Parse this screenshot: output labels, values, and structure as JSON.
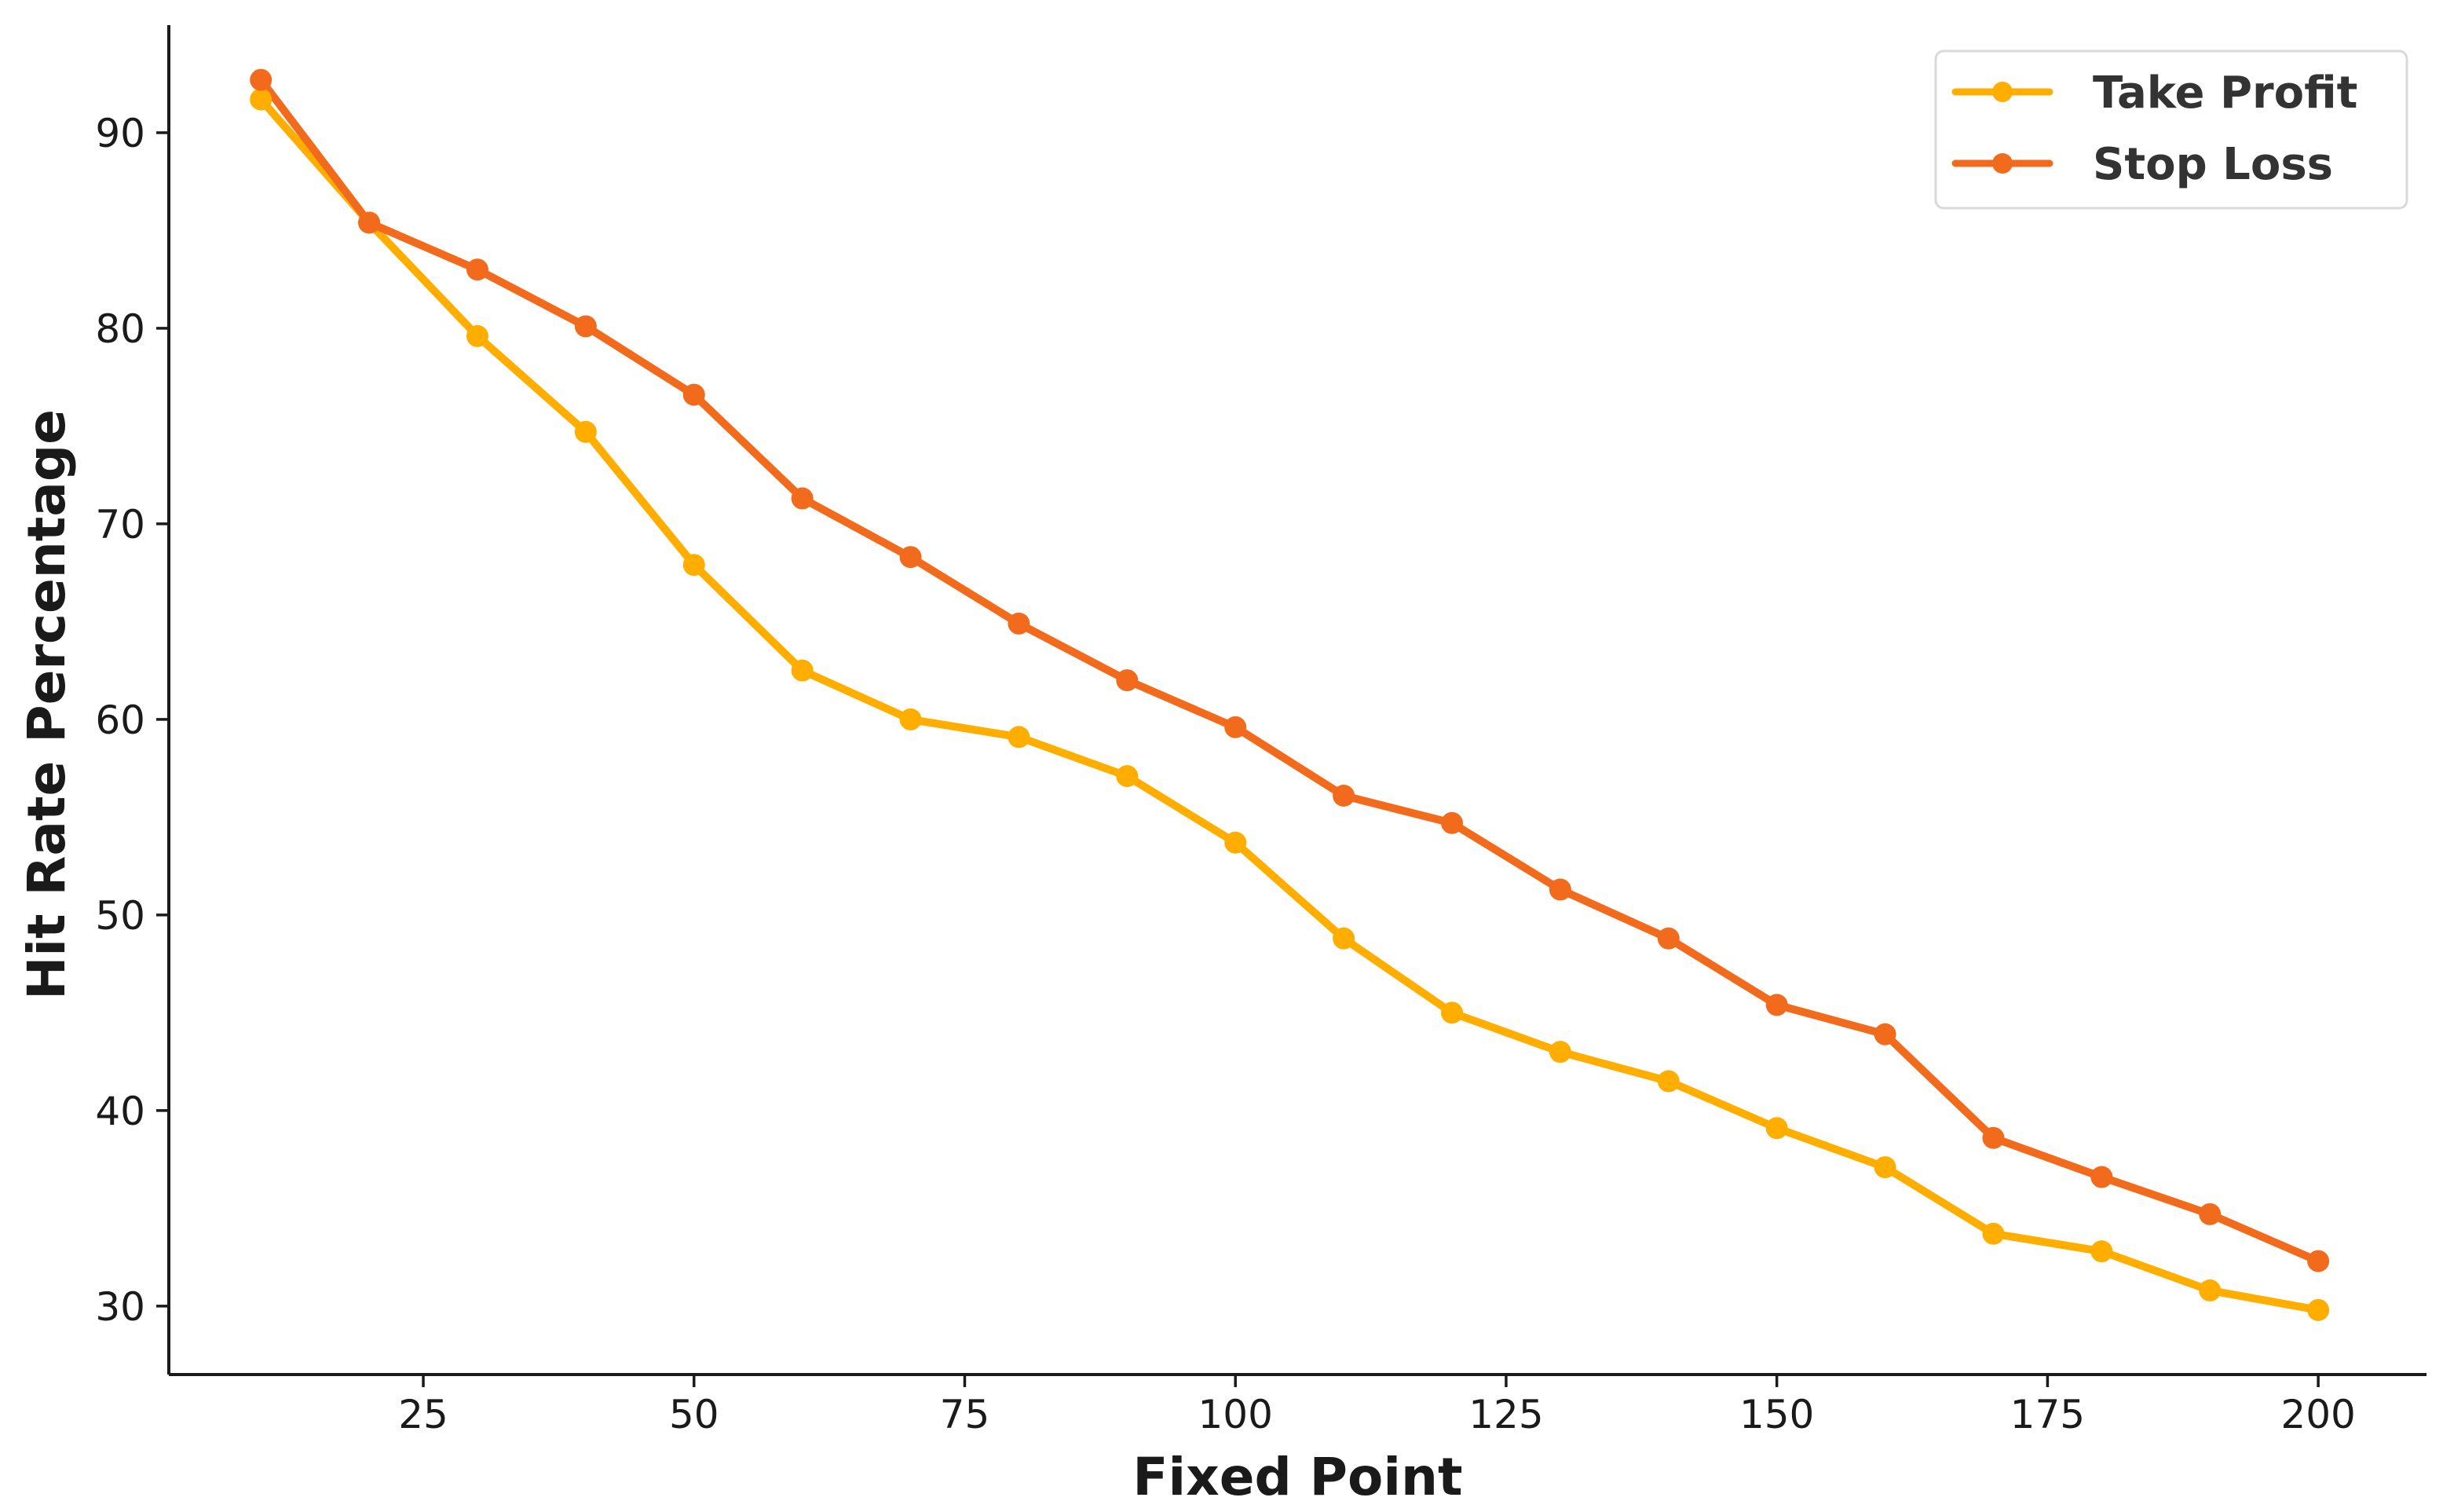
{
  "chart_data": {
    "type": "line",
    "title": "",
    "xlabel": "Fixed Point",
    "ylabel": "Hit Rate Percentage",
    "xlim": [
      1.5,
      210
    ],
    "ylim": [
      26.5,
      95.5
    ],
    "xticks": [
      25,
      50,
      75,
      100,
      125,
      150,
      175,
      200
    ],
    "yticks": [
      30,
      40,
      50,
      60,
      70,
      80,
      90
    ],
    "grid": false,
    "legend_position": "top-right",
    "x": [
      10,
      20,
      30,
      40,
      50,
      60,
      70,
      80,
      90,
      100,
      110,
      120,
      130,
      140,
      150,
      160,
      170,
      180,
      190,
      200
    ],
    "series": [
      {
        "name": "Take Profit",
        "color": "#FFAE00",
        "values": [
          91.7,
          85.4,
          79.6,
          74.7,
          67.9,
          62.5,
          60.0,
          59.1,
          57.1,
          53.7,
          48.8,
          45.0,
          43.0,
          41.5,
          39.1,
          37.1,
          33.7,
          32.8,
          30.8,
          29.8
        ]
      },
      {
        "name": "Stop Loss",
        "color": "#F26B1D",
        "values": [
          92.7,
          85.4,
          83.0,
          80.1,
          76.6,
          71.3,
          68.3,
          64.9,
          62.0,
          59.6,
          56.1,
          54.7,
          51.3,
          48.8,
          45.4,
          43.9,
          38.6,
          36.6,
          34.7,
          32.3
        ]
      }
    ]
  }
}
